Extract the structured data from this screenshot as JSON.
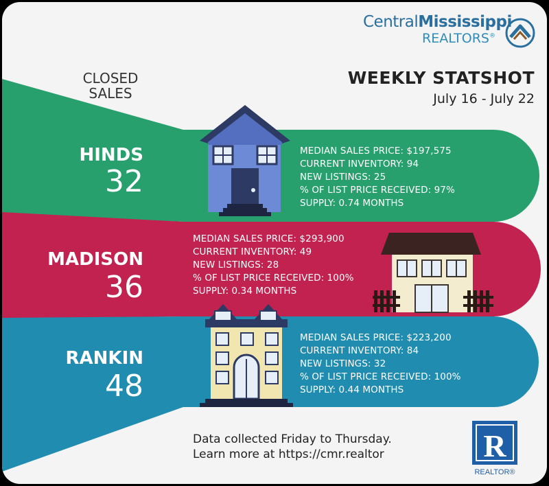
{
  "branding": {
    "org_name_part1": "Central",
    "org_name_part2": "Mississippi",
    "org_name_line2": "REALTORS",
    "registered_mark": "®",
    "realtor_logo_letter": "R",
    "realtor_logo_text": "REALTOR®"
  },
  "header": {
    "closed_sales_line1": "CLOSED",
    "closed_sales_line2": "SALES",
    "title": "WEEKLY STATSHOT",
    "date_range": "July 16 - July 22"
  },
  "colors": {
    "hinds": "#27a06d",
    "madison": "#c2224f",
    "rankin": "#1f8cb0",
    "background": "#f4f4f4"
  },
  "counties": [
    {
      "name": "HINDS",
      "closed_sales": "32",
      "stats": [
        "MEDIAN SALES PRICE: $197,575",
        "CURRENT INVENTORY: 94",
        "NEW LISTINGS: 25",
        "% OF LIST PRICE RECEIVED: 97%",
        "SUPPLY: 0.74 MONTHS"
      ]
    },
    {
      "name": "MADISON",
      "closed_sales": "36",
      "stats": [
        "MEDIAN SALES PRICE: $293,900",
        "CURRENT INVENTORY: 49",
        "NEW LISTINGS: 28",
        "% OF LIST PRICE RECEIVED: 100%",
        "SUPPLY: 0.34 MONTHS"
      ]
    },
    {
      "name": "RANKIN",
      "closed_sales": "48",
      "stats": [
        "MEDIAN SALES PRICE: $223,200",
        "CURRENT INVENTORY: 84",
        "NEW LISTINGS: 32",
        "% OF LIST PRICE RECEIVED: 100%",
        "SUPPLY: 0.44 MONTHS"
      ]
    }
  ],
  "footer": {
    "line1": "Data collected Friday to Thursday.",
    "line2": "Learn more at https://cmr.realtor"
  }
}
